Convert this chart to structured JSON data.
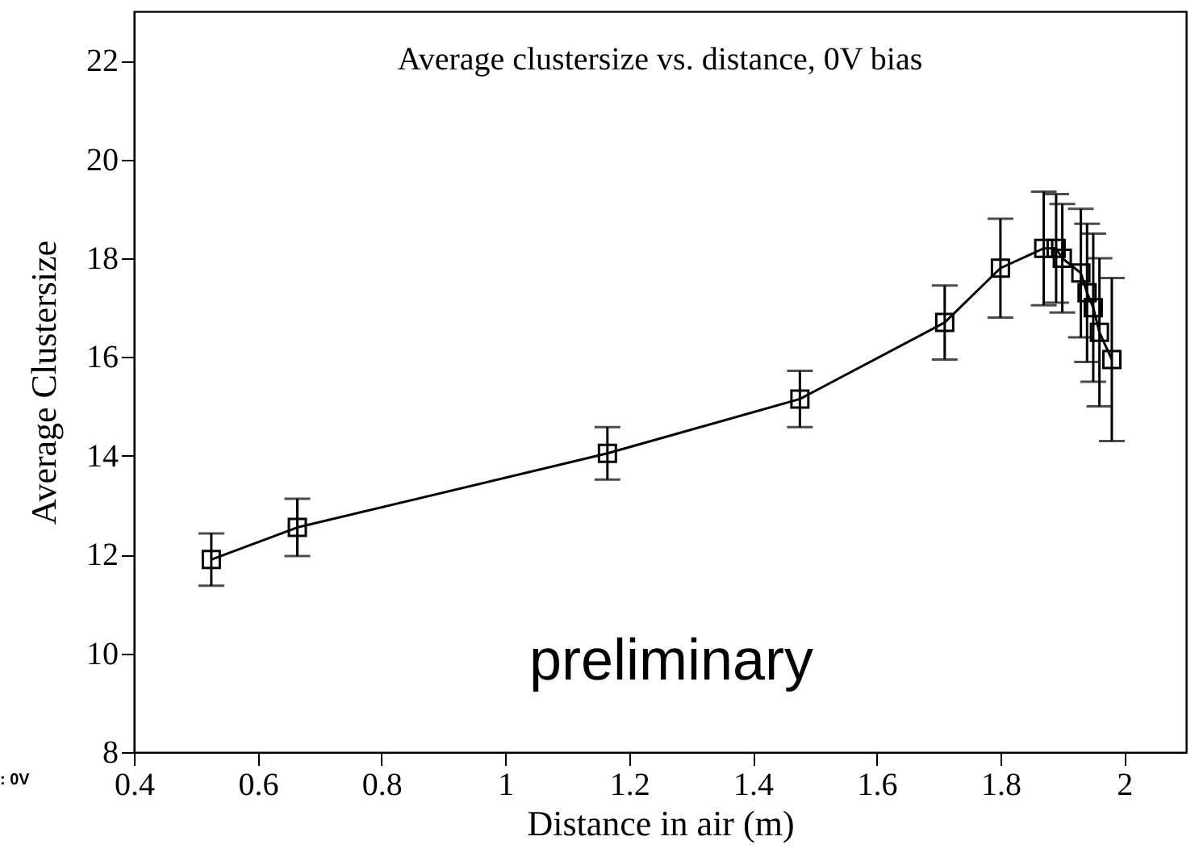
{
  "chart_data": {
    "type": "line",
    "title": "Average clustersize vs. distance, 0V bias",
    "xlabel": "Distance in air (m)",
    "ylabel": "Average Clustersize",
    "annotations": [
      "preliminary",
      ": 0V"
    ],
    "x": [
      0.525,
      0.664,
      1.165,
      1.476,
      1.71,
      1.8,
      1.87,
      1.89,
      1.9,
      1.93,
      1.94,
      1.95,
      1.96,
      1.98
    ],
    "series": [
      {
        "color": "#000000",
        "values": [
          11.9,
          12.55,
          14.05,
          15.15,
          16.7,
          17.8,
          18.2,
          18.2,
          18.0,
          17.7,
          17.3,
          17.0,
          16.5,
          15.95
        ],
        "errors": [
          0.53,
          0.58,
          0.53,
          0.57,
          0.75,
          1.0,
          1.15,
          1.1,
          1.1,
          1.3,
          1.4,
          1.5,
          1.5,
          1.65
        ]
      }
    ],
    "xlim": [
      0.4,
      2.1
    ],
    "xticks": [
      0.4,
      0.6,
      0.8,
      1,
      1.2,
      1.4,
      1.6,
      1.8,
      2
    ],
    "ylim": [
      8,
      23
    ],
    "yticks": [
      8,
      10,
      12,
      14,
      16,
      18,
      20,
      22
    ],
    "grid": false,
    "marker": "square",
    "line_style": "solid"
  }
}
